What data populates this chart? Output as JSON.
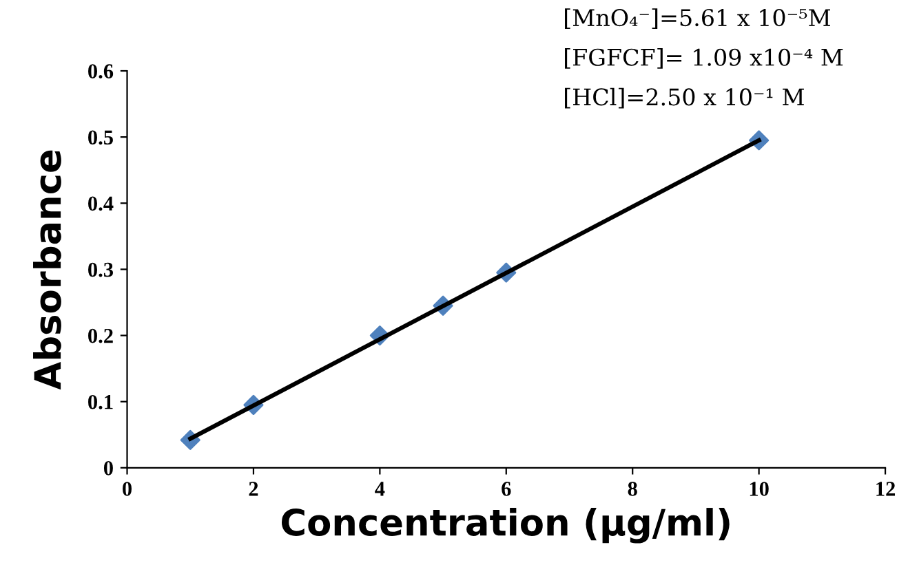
{
  "chart_data": {
    "type": "scatter",
    "xlabel": "Concentration (µg/ml)",
    "ylabel": "Absorbance",
    "annotations": [
      "[MnO₄⁻]=5.61 x 10⁻⁵M",
      "[FGFCF]= 1.09 x10⁻⁴ M",
      "[HCl]=2.50 x 10⁻¹ M"
    ],
    "series": [
      {
        "color": "#4f81bd",
        "x": [
          1,
          2,
          4,
          5,
          6,
          10
        ],
        "values": [
          0.042,
          0.095,
          0.2,
          0.245,
          0.295,
          0.495
        ],
        "marker": "diamond"
      },
      {
        "type": "line",
        "color": "#000000",
        "x": [
          1,
          10
        ],
        "values": [
          0.044,
          0.495
        ],
        "marker": "none",
        "line_style": "solid"
      }
    ],
    "xlim": [
      0,
      12
    ],
    "xticks": [
      0,
      2,
      4,
      6,
      8,
      10,
      12
    ],
    "ylim": [
      0,
      0.6
    ],
    "yticks": [
      0,
      0.1,
      0.2,
      0.3,
      0.4,
      0.5,
      0.6
    ],
    "grid": false,
    "legend": false
  }
}
